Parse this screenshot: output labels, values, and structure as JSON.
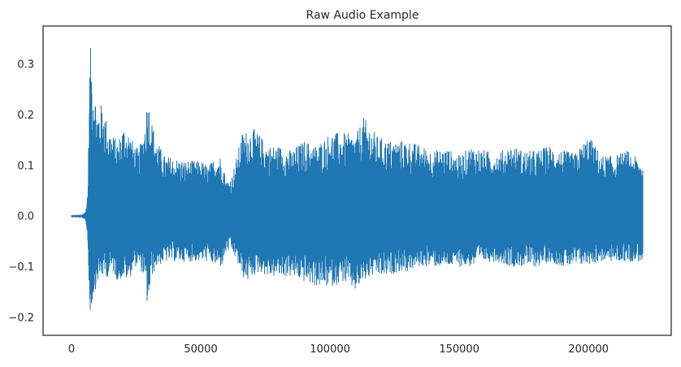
{
  "chart_data": {
    "type": "line",
    "title": "Raw Audio Example",
    "xlabel": "",
    "ylabel": "",
    "xlim": [
      -11000,
      232000
    ],
    "ylim": [
      -0.235,
      0.375
    ],
    "grid": false,
    "legend": "none",
    "line_color": "#1f77b4",
    "x_ticks": [
      0,
      50000,
      100000,
      150000,
      200000
    ],
    "x_tick_labels": [
      "0",
      "50000",
      "100000",
      "150000",
      "200000"
    ],
    "y_ticks": [
      -0.2,
      -0.1,
      0.0,
      0.1,
      0.2,
      0.3
    ],
    "y_tick_labels": [
      "−0.2",
      "−0.1",
      "0.0",
      "0.1",
      "0.2",
      "0.3"
    ],
    "sample_count": 221000,
    "envelope": {
      "x": [
        0,
        4000,
        5500,
        6300,
        6800,
        7200,
        8000,
        10000,
        12000,
        14000,
        16000,
        18000,
        20000,
        22000,
        24000,
        26000,
        28000,
        29500,
        31000,
        33000,
        36000,
        40000,
        44000,
        47000,
        50000,
        53000,
        56000,
        58000,
        60000,
        62000,
        64000,
        66000,
        68000,
        70000,
        73000,
        76000,
        80000,
        85000,
        90000,
        95000,
        100000,
        105000,
        110000,
        113000,
        116000,
        118000,
        122000,
        126000,
        130000,
        135000,
        140000,
        145000,
        150000,
        155000,
        160000,
        165000,
        170000,
        175000,
        180000,
        185000,
        190000,
        195000,
        200000,
        205000,
        210000,
        215000,
        220000,
        221000
      ],
      "upper": [
        0.002,
        0.003,
        0.01,
        0.05,
        0.2,
        0.345,
        0.29,
        0.21,
        0.225,
        0.18,
        0.16,
        0.15,
        0.18,
        0.17,
        0.145,
        0.13,
        0.17,
        0.24,
        0.19,
        0.15,
        0.12,
        0.115,
        0.11,
        0.11,
        0.11,
        0.1,
        0.12,
        0.12,
        0.07,
        0.08,
        0.12,
        0.165,
        0.17,
        0.175,
        0.16,
        0.14,
        0.14,
        0.13,
        0.15,
        0.14,
        0.165,
        0.165,
        0.16,
        0.195,
        0.175,
        0.16,
        0.15,
        0.15,
        0.15,
        0.14,
        0.13,
        0.135,
        0.12,
        0.14,
        0.13,
        0.125,
        0.14,
        0.13,
        0.13,
        0.14,
        0.13,
        0.125,
        0.16,
        0.12,
        0.12,
        0.13,
        0.11,
        0.11
      ],
      "lower": [
        -0.002,
        -0.003,
        -0.01,
        -0.05,
        -0.16,
        -0.205,
        -0.17,
        -0.13,
        -0.12,
        -0.12,
        -0.11,
        -0.13,
        -0.12,
        -0.13,
        -0.1,
        -0.1,
        -0.12,
        -0.185,
        -0.12,
        -0.1,
        -0.09,
        -0.09,
        -0.09,
        -0.09,
        -0.09,
        -0.09,
        -0.1,
        -0.1,
        -0.07,
        -0.07,
        -0.09,
        -0.12,
        -0.13,
        -0.12,
        -0.11,
        -0.12,
        -0.12,
        -0.12,
        -0.13,
        -0.14,
        -0.14,
        -0.13,
        -0.15,
        -0.13,
        -0.12,
        -0.12,
        -0.12,
        -0.11,
        -0.11,
        -0.1,
        -0.1,
        -0.1,
        -0.1,
        -0.1,
        -0.09,
        -0.09,
        -0.1,
        -0.1,
        -0.1,
        -0.09,
        -0.1,
        -0.1,
        -0.095,
        -0.09,
        -0.09,
        -0.09,
        -0.09,
        -0.09
      ]
    }
  }
}
